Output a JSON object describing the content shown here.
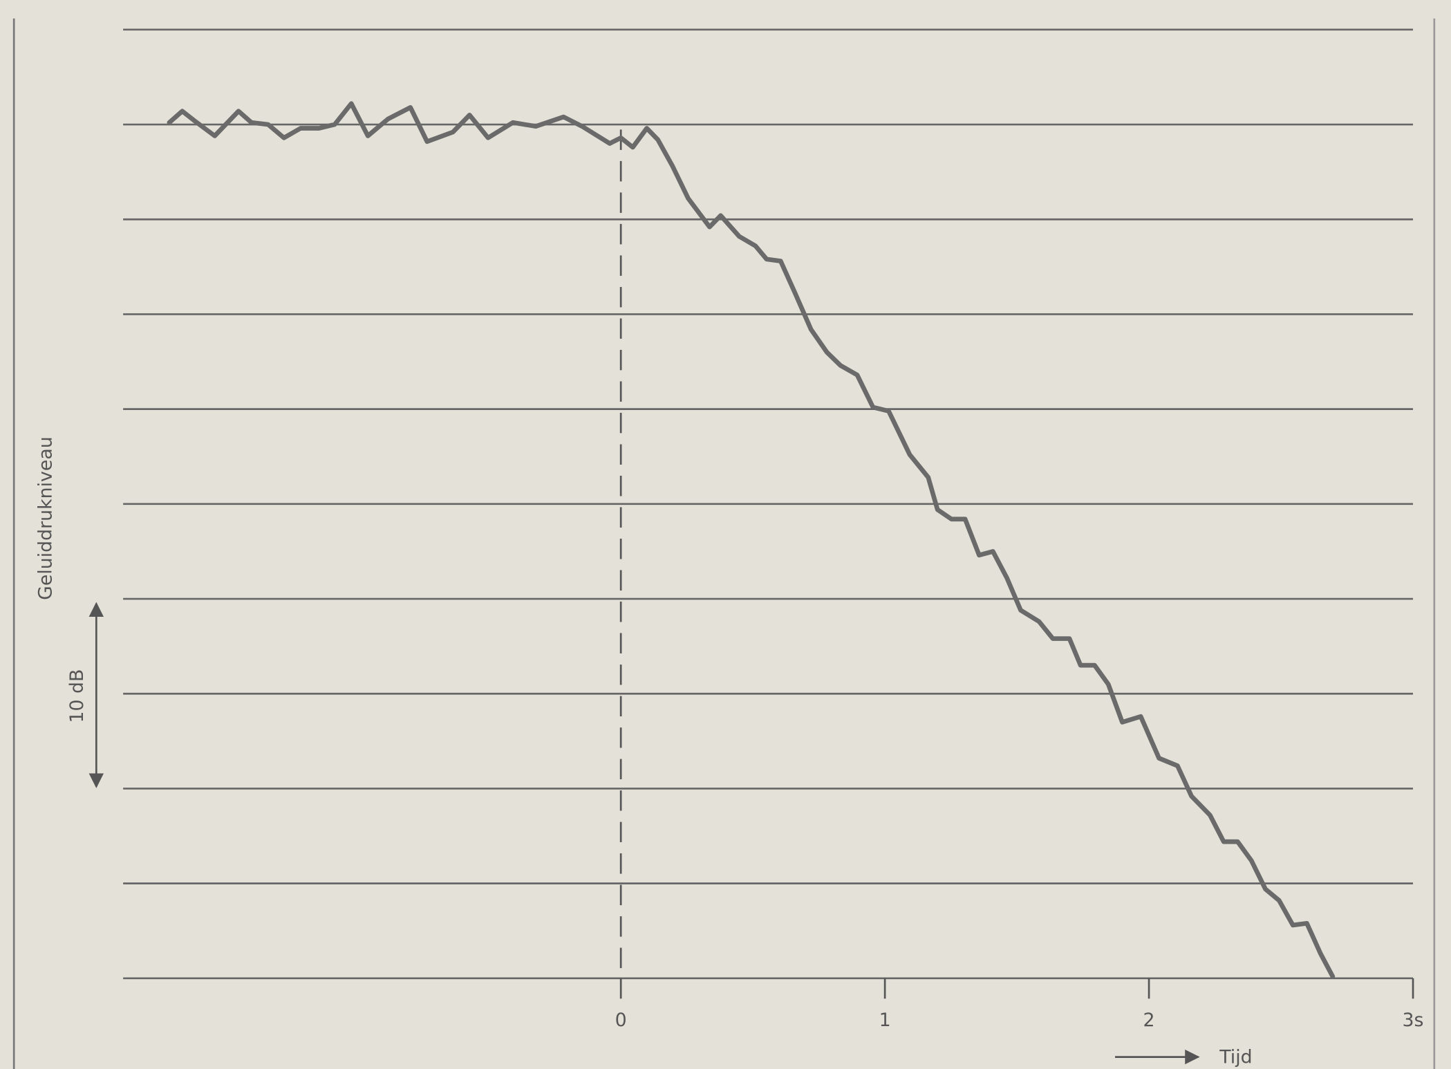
{
  "chart_data": {
    "type": "line",
    "y_label": "Geluiddrukniveau",
    "x_label": "Tijd",
    "annotation": "10 dB",
    "xlim": [
      -1.885,
      3
    ],
    "ylim": [
      -50,
      0
    ],
    "xticks": [
      0,
      1,
      2,
      {
        "value": 3,
        "label": "3s"
      }
    ],
    "yticks": [
      -50,
      -45,
      -40,
      -35,
      -30,
      -25,
      -20,
      -15,
      -10,
      -5,
      0
    ],
    "grid": true,
    "series": [
      {
        "color": "#6a6a6a",
        "x": [
          -1.71,
          -1.661,
          -1.615,
          -1.538,
          -1.448,
          -1.399,
          -1.336,
          -1.276,
          -1.213,
          -1.143,
          -1.084,
          -1.021,
          -0.958,
          -0.881,
          -0.797,
          -0.734,
          -0.636,
          -0.573,
          -0.503,
          -0.409,
          -0.322,
          -0.217,
          -0.147,
          -0.042,
          0.0,
          0.045,
          0.098,
          0.14,
          0.196,
          0.255,
          0.336,
          0.378,
          0.448,
          0.51,
          0.552,
          0.605,
          0.657,
          0.72,
          0.78,
          0.832,
          0.895,
          0.955,
          1.014,
          1.094,
          1.164,
          1.199,
          1.252,
          1.304,
          1.357,
          1.409,
          1.462,
          1.514,
          1.584,
          1.636,
          1.699,
          1.741,
          1.794,
          1.846,
          1.899,
          1.969,
          2.038,
          2.108,
          2.161,
          2.231,
          2.283,
          2.336,
          2.388,
          2.441,
          2.493,
          2.545,
          2.598,
          2.65,
          2.696
        ],
        "values": [
          -4.9,
          -4.3,
          -4.8,
          -5.6,
          -4.3,
          -4.9,
          -5.0,
          -5.7,
          -5.2,
          -5.2,
          -5.0,
          -3.9,
          -5.6,
          -4.7,
          -4.1,
          -5.9,
          -5.4,
          -4.5,
          -5.7,
          -4.9,
          -5.1,
          -4.6,
          -5.1,
          -6.0,
          -5.7,
          -6.2,
          -5.2,
          -5.8,
          -7.2,
          -8.9,
          -10.4,
          -9.8,
          -10.9,
          -11.4,
          -12.1,
          -12.2,
          -13.8,
          -15.8,
          -17.0,
          -17.7,
          -18.2,
          -19.9,
          -20.1,
          -22.4,
          -23.6,
          -25.3,
          -25.8,
          -25.8,
          -27.7,
          -27.5,
          -28.9,
          -30.6,
          -31.2,
          -32.1,
          -32.1,
          -33.5,
          -33.5,
          -34.5,
          -36.5,
          -36.2,
          -38.4,
          -38.8,
          -40.4,
          -41.4,
          -42.8,
          -42.8,
          -43.8,
          -45.3,
          -45.9,
          -47.2,
          -47.1,
          -48.7,
          -49.9
        ]
      }
    ]
  }
}
